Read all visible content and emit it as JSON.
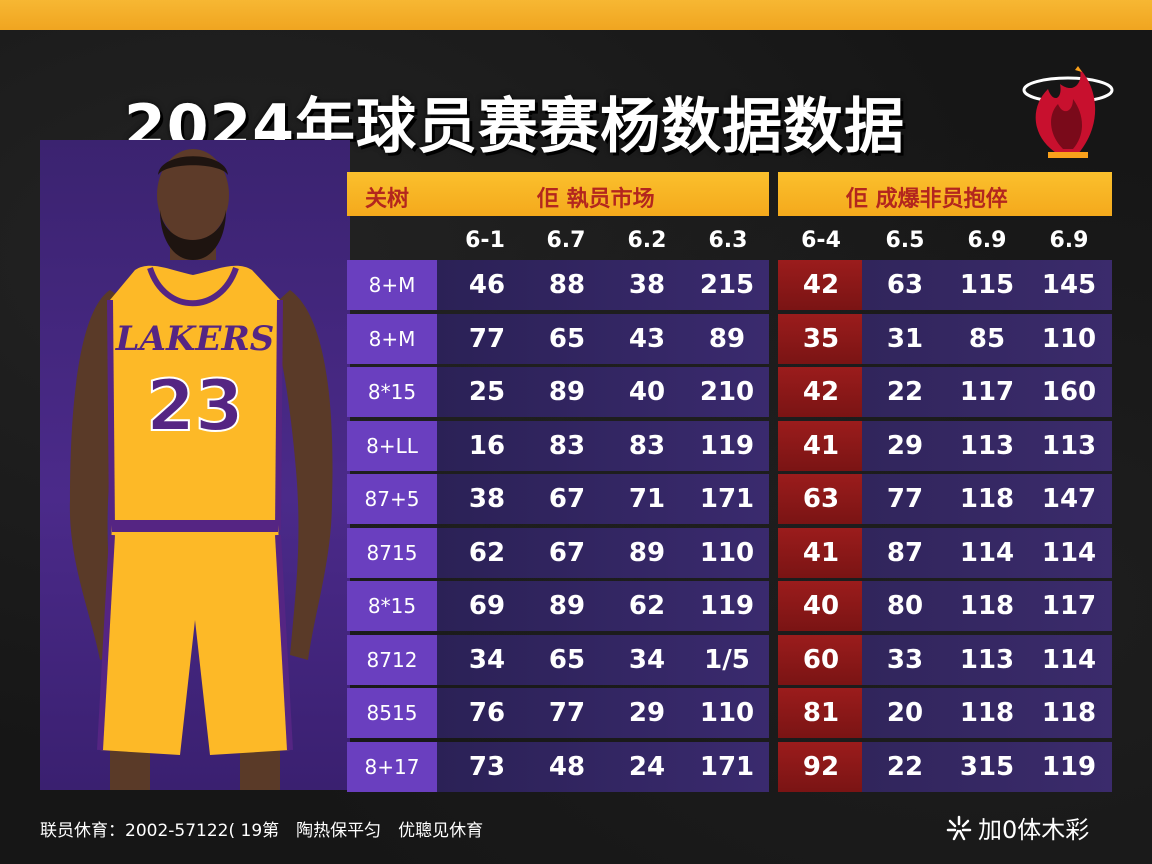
{
  "title": "2024年球员赛赛杨数据数据",
  "header": {
    "corner_label": "关树",
    "left_group": "佢 執员市场",
    "right_group": "佢 成爆非员抱倅"
  },
  "columns": {
    "left": [
      "6-1",
      "6.7",
      "6.2",
      "6.3"
    ],
    "right": [
      "6-4",
      "6.5",
      "6.9",
      "6.9"
    ]
  },
  "rows": [
    {
      "label": "8+M",
      "left": [
        "46",
        "88",
        "38",
        "215"
      ],
      "right": [
        "42",
        "63",
        "115",
        "145"
      ]
    },
    {
      "label": "8+M",
      "left": [
        "77",
        "65",
        "43",
        "89"
      ],
      "right": [
        "35",
        "31",
        "85",
        "110"
      ]
    },
    {
      "label": "8*15",
      "left": [
        "25",
        "89",
        "40",
        "210"
      ],
      "right": [
        "42",
        "22",
        "117",
        "160"
      ]
    },
    {
      "label": "8+LL",
      "left": [
        "16",
        "83",
        "83",
        "119"
      ],
      "right": [
        "41",
        "29",
        "113",
        "113"
      ]
    },
    {
      "label": "87+5",
      "left": [
        "38",
        "67",
        "71",
        "171"
      ],
      "right": [
        "63",
        "77",
        "118",
        "147"
      ]
    },
    {
      "label": "8715",
      "left": [
        "62",
        "67",
        "89",
        "110"
      ],
      "right": [
        "41",
        "87",
        "114",
        "114"
      ]
    },
    {
      "label": "8*15",
      "left": [
        "69",
        "89",
        "62",
        "119"
      ],
      "right": [
        "40",
        "80",
        "118",
        "117"
      ]
    },
    {
      "label": "8712",
      "left": [
        "34",
        "65",
        "34",
        "1/5"
      ],
      "right": [
        "60",
        "33",
        "113",
        "114"
      ]
    },
    {
      "label": "8515",
      "left": [
        "76",
        "77",
        "29",
        "110"
      ],
      "right": [
        "81",
        "20",
        "118",
        "118"
      ]
    },
    {
      "label": "8+17",
      "left": [
        "73",
        "48",
        "24",
        "171"
      ],
      "right": [
        "92",
        "22",
        "315",
        "119"
      ]
    }
  ],
  "player": {
    "team_text": "LAKERS",
    "number": "23"
  },
  "footer": {
    "left_text": "联员休育：2002-57122( 19第　陶热保平匀　优聰见休育",
    "brand": "加0体木彩"
  },
  "colors": {
    "accent_gold": "#f4a91c",
    "header_text": "#b3261e",
    "row_label_purple": "#6a3fbf",
    "highlight_red": "#8b1a1a"
  }
}
